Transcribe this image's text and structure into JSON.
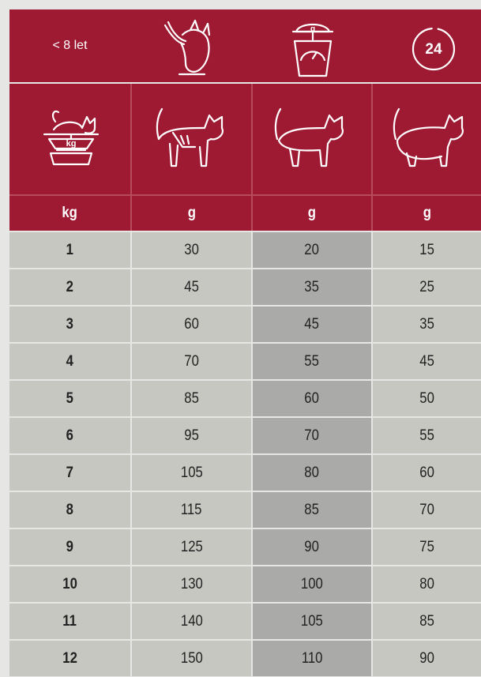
{
  "header": {
    "age_label": "< 8 let",
    "icon_scale_label": "g",
    "icon_clock_label": "24",
    "icon_weight_label": "kg"
  },
  "table": {
    "units": [
      "kg",
      "g",
      "g",
      "g"
    ],
    "rows": [
      [
        1,
        30,
        20,
        15
      ],
      [
        2,
        45,
        35,
        25
      ],
      [
        3,
        60,
        45,
        35
      ],
      [
        4,
        70,
        55,
        45
      ],
      [
        5,
        85,
        60,
        50
      ],
      [
        6,
        95,
        70,
        55
      ],
      [
        7,
        105,
        80,
        60
      ],
      [
        8,
        115,
        85,
        70
      ],
      [
        9,
        125,
        90,
        75
      ],
      [
        10,
        130,
        100,
        80
      ],
      [
        11,
        140,
        105,
        85
      ],
      [
        12,
        150,
        110,
        90
      ]
    ]
  }
}
